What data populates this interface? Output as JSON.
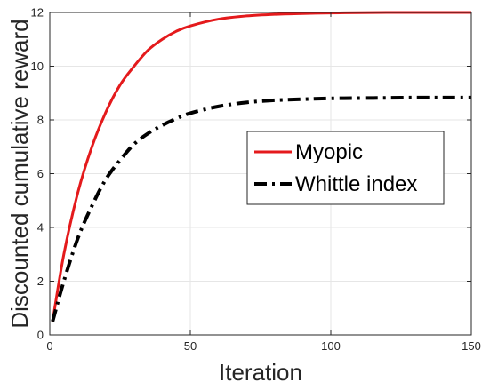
{
  "chart_data": {
    "type": "line",
    "title": "",
    "xlabel": "Iteration",
    "ylabel": "Discounted cumulative reward",
    "xlim": [
      0,
      150
    ],
    "ylim": [
      0,
      12
    ],
    "xticks": [
      0,
      50,
      100,
      150
    ],
    "yticks": [
      0,
      2,
      4,
      6,
      8,
      10,
      12
    ],
    "grid": true,
    "legend": {
      "placement": "center-right"
    },
    "series": [
      {
        "name": "Myopic",
        "color": "#e41a1c",
        "style": "solid",
        "x": [
          1,
          5,
          10,
          15,
          20,
          25,
          30,
          35,
          40,
          45,
          50,
          60,
          70,
          80,
          90,
          100,
          110,
          120,
          130,
          140,
          150
        ],
        "y": [
          0.5,
          3.0,
          5.3,
          7.0,
          8.3,
          9.3,
          10.0,
          10.6,
          11.0,
          11.3,
          11.5,
          11.75,
          11.87,
          11.93,
          11.96,
          11.98,
          11.99,
          12.0,
          12.0,
          12.0,
          12.0
        ]
      },
      {
        "name": "Whittle index",
        "color": "#000000",
        "style": "dash-dot",
        "x": [
          1,
          5,
          10,
          15,
          20,
          25,
          30,
          35,
          40,
          45,
          50,
          60,
          70,
          80,
          90,
          100,
          110,
          120,
          130,
          140,
          150
        ],
        "y": [
          0.5,
          2.0,
          3.6,
          4.8,
          5.8,
          6.5,
          7.1,
          7.5,
          7.8,
          8.05,
          8.25,
          8.5,
          8.65,
          8.73,
          8.77,
          8.8,
          8.81,
          8.82,
          8.83,
          8.83,
          8.83
        ]
      }
    ]
  }
}
